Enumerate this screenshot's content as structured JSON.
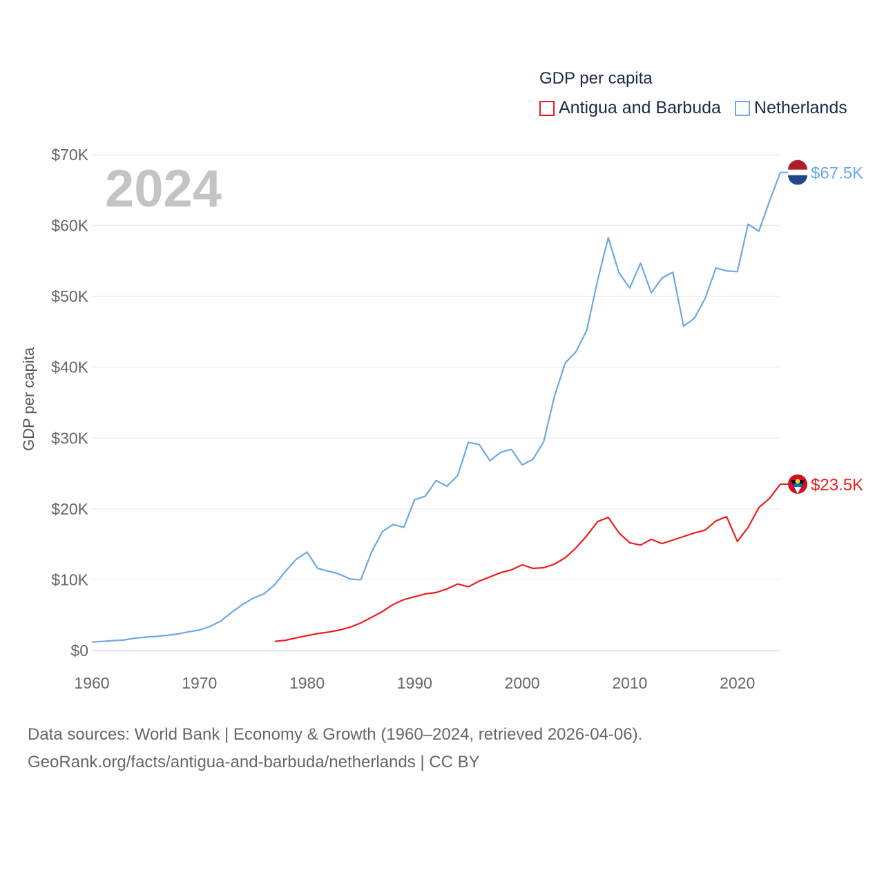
{
  "chart_data": {
    "type": "line",
    "title": "GDP per capita",
    "ylabel": "GDP per capita",
    "xlabel": "",
    "year_label": "2024",
    "xlim": [
      1960,
      2024
    ],
    "ylim": [
      0,
      70000
    ],
    "yticks": [
      {
        "v": 0,
        "label": "$0"
      },
      {
        "v": 10000,
        "label": "$10K"
      },
      {
        "v": 20000,
        "label": "$20K"
      },
      {
        "v": 30000,
        "label": "$30K"
      },
      {
        "v": 40000,
        "label": "$40K"
      },
      {
        "v": 50000,
        "label": "$50K"
      },
      {
        "v": 60000,
        "label": "$60K"
      },
      {
        "v": 70000,
        "label": "$70K"
      }
    ],
    "xticks": [
      1960,
      1970,
      1980,
      1990,
      2000,
      2010,
      2020
    ],
    "grid": true,
    "legend_placement": "top-right",
    "series": [
      {
        "name": "Antigua and Barbuda",
        "color": "#ee1c1c",
        "end_label": "$23.5K",
        "start_year": 1977,
        "values": [
          1300,
          1450,
          1800,
          2100,
          2400,
          2600,
          2900,
          3300,
          3900,
          4700,
          5500,
          6500,
          7200,
          7600,
          8000,
          8200,
          8700,
          9400,
          9000,
          9800,
          10400,
          11000,
          11400,
          12100,
          11600,
          11700,
          12200,
          13100,
          14500,
          16200,
          18200,
          18800,
          16600,
          15200,
          14900,
          15700,
          15100,
          15600,
          16100,
          16600,
          17000,
          18300,
          18900,
          15400,
          17400,
          20200,
          21500,
          23500
        ]
      },
      {
        "name": "Netherlands",
        "color": "#6aa8e6",
        "end_label": "$67.5K",
        "start_year": 1960,
        "values": [
          1200,
          1300,
          1400,
          1500,
          1750,
          1900,
          2000,
          2150,
          2350,
          2650,
          2900,
          3400,
          4200,
          5400,
          6500,
          7400,
          8000,
          9300,
          11200,
          12900,
          13900,
          11600,
          11200,
          10800,
          10100,
          10000,
          13900,
          16800,
          17800,
          17400,
          21300,
          21800,
          24000,
          23200,
          24700,
          29400,
          29100,
          26800,
          28000,
          28400,
          26200,
          27000,
          29500,
          35900,
          40600,
          42200,
          45200,
          52200,
          58300,
          53300,
          51200,
          54700,
          50500,
          52600,
          53400,
          45800,
          46900,
          49700,
          54000,
          53600,
          53500,
          60200,
          59200,
          63500,
          67500
        ]
      }
    ]
  },
  "footer": {
    "line1": "Data sources: World Bank | Economy & Growth (1960–2024, retrieved 2026-04-06).",
    "line2": "GeoRank.org/facts/antigua-and-barbuda/netherlands | CC BY"
  }
}
